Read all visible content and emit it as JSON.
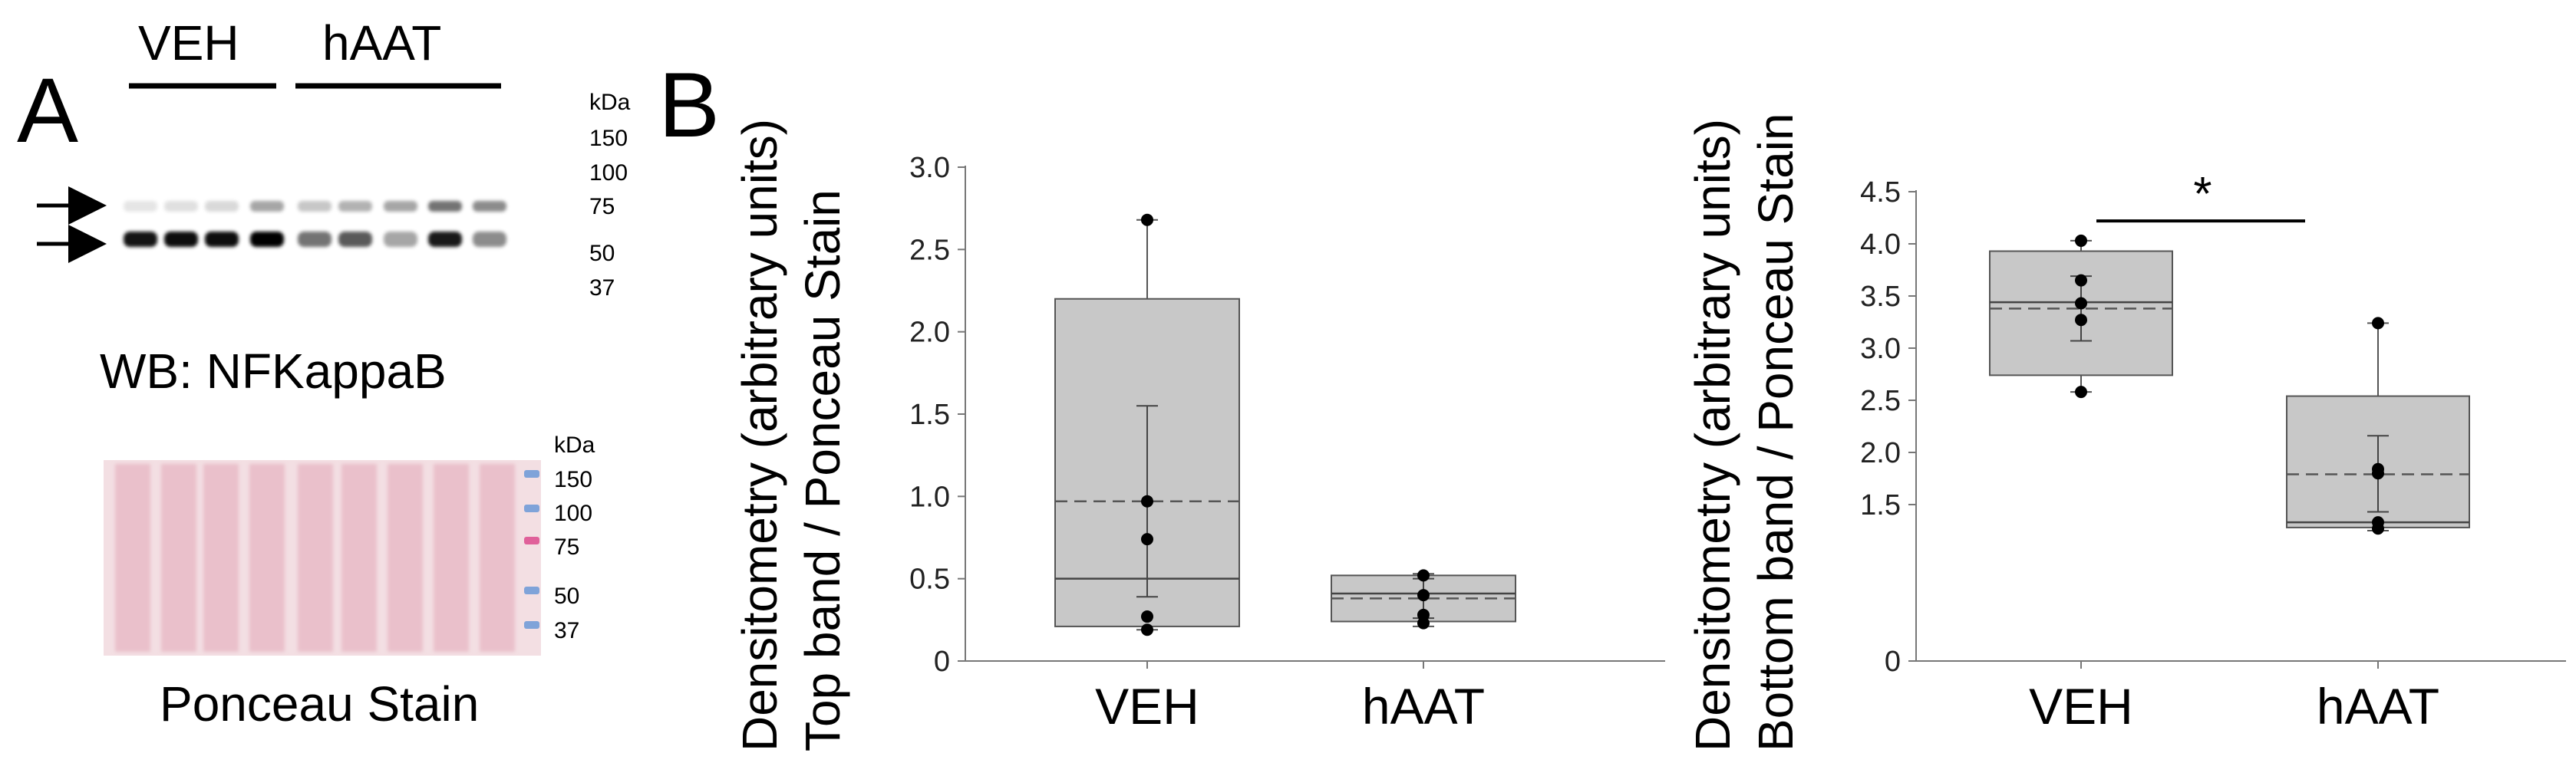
{
  "panel_a": {
    "letter": "A",
    "groups": [
      "VEH",
      "hAAT"
    ],
    "kda_header": "kDa",
    "wb_markers": [
      "150",
      "100",
      "75",
      "50",
      "37"
    ],
    "wb_caption": "WB: NFKappaB",
    "ponceau_kda_header": "kDa",
    "ponceau_markers": [
      "150",
      "100",
      "75",
      "50",
      "37"
    ],
    "ponceau_caption": "Ponceau Stain",
    "colors": {
      "ponceau_bg": "#f3dfe3",
      "ponceau_lane": "#e7b6c3",
      "marker_blue": "#7fa3d9",
      "marker_pink": "#e0609a"
    }
  },
  "panel_b": {
    "letter": "B"
  },
  "chart_data": [
    {
      "type": "box",
      "ylabel_line1": "Densitometry (arbitrary units)",
      "ylabel_line2": "Top band / Ponceau Stain",
      "categories": [
        "VEH",
        "hAAT"
      ],
      "ylim": [
        0,
        3.0
      ],
      "yticks": [
        "0",
        "0.5",
        "1.0",
        "1.5",
        "2.0",
        "2.5",
        "3.0"
      ],
      "ytick_values": [
        0,
        0.5,
        1.0,
        1.5,
        2.0,
        2.5,
        3.0
      ],
      "boxes": [
        {
          "category": "VEH",
          "q1": 0.21,
          "median": 0.5,
          "mean": 0.97,
          "q3": 2.2,
          "whisker_low": 0.19,
          "whisker_high": 2.68,
          "sd_low": 0.39,
          "sd_high": 1.55,
          "points": [
            2.68,
            0.97,
            0.74,
            0.27,
            0.19
          ]
        },
        {
          "category": "hAAT",
          "q1": 0.24,
          "median": 0.41,
          "mean": 0.38,
          "q3": 0.52,
          "whisker_low": 0.21,
          "whisker_high": 0.53,
          "sd_low": 0.26,
          "sd_high": 0.5,
          "points": [
            0.52,
            0.4,
            0.28,
            0.23
          ]
        }
      ],
      "colors": {
        "box_fill": "#c8c8c8",
        "box_edge": "#555555",
        "point": "#000000"
      }
    },
    {
      "type": "box",
      "ylabel_line1": "Densitometry (arbitrary units)",
      "ylabel_line2": "Bottom band / Ponceau Stain",
      "categories": [
        "VEH",
        "hAAT"
      ],
      "ylim": [
        0,
        4.5
      ],
      "yticks": [
        "0",
        "1.5",
        "2.0",
        "2.5",
        "3.0",
        "3.5",
        "4.0",
        "4.5"
      ],
      "ytick_values": [
        0,
        1.5,
        2.0,
        2.5,
        3.0,
        3.5,
        4.0,
        4.5
      ],
      "boxes": [
        {
          "category": "VEH",
          "q1": 2.74,
          "median": 3.44,
          "mean": 3.38,
          "q3": 3.93,
          "whisker_low": 2.58,
          "whisker_high": 4.03,
          "sd_low": 3.07,
          "sd_high": 3.69,
          "points": [
            4.03,
            3.65,
            3.43,
            3.27,
            2.58
          ]
        },
        {
          "category": "hAAT",
          "q1": 1.28,
          "median": 1.33,
          "mean": 1.79,
          "q3": 2.54,
          "whisker_low": 1.25,
          "whisker_high": 3.24,
          "sd_low": 1.43,
          "sd_high": 2.16,
          "points": [
            3.24,
            1.84,
            1.8,
            1.33,
            1.27
          ]
        }
      ],
      "significance": {
        "label": "*",
        "between": [
          "VEH",
          "hAAT"
        ],
        "y": 4.22
      },
      "colors": {
        "box_fill": "#c8c8c8",
        "box_edge": "#555555",
        "point": "#000000"
      }
    }
  ]
}
